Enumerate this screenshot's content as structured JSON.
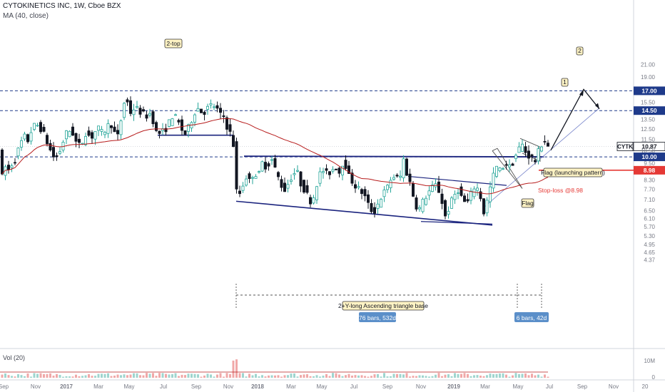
{
  "header": {
    "title": "CYTOKINETICS INC, 1W, Cboe BZX",
    "indicator": "MA (40, close)",
    "volume_label": "Vol (20)"
  },
  "chart_data": {
    "type": "candlestick",
    "symbol": "CYTK",
    "scale": "log",
    "ylim": [
      4.2,
      21.5
    ],
    "y_ticks": [
      "21.00",
      "19.00",
      "17.00",
      "15.50",
      "14.50",
      "13.50",
      "12.50",
      "11.50",
      "10.87",
      "10.50",
      "10.00",
      "9.50",
      "8.98",
      "8.30",
      "7.70",
      "7.10",
      "6.50",
      "6.10",
      "5.70",
      "5.30",
      "4.95",
      "4.65",
      "4.37"
    ],
    "x_tick_labels": [
      "Sep",
      "Nov",
      "2017",
      "Mar",
      "May",
      "Jul",
      "Sep",
      "Nov",
      "2018",
      "Mar",
      "May",
      "Jul",
      "Sep",
      "Nov",
      "2019",
      "Mar",
      "May",
      "Jul",
      "Sep",
      "Nov",
      "20"
    ],
    "volume_ticks": [
      "10M",
      "0"
    ],
    "price_levels": [
      {
        "label": "17.00",
        "value": 17.0,
        "color": "#1e3a8a"
      },
      {
        "label": "14.50",
        "value": 14.5,
        "color": "#1e3a8a"
      },
      {
        "label": "10.87",
        "value": 10.87,
        "color": "#131722"
      },
      {
        "label": "10.00",
        "value": 10.0,
        "color": "#1e3a8a"
      },
      {
        "label": "8.98",
        "value": 8.98,
        "color": "#e53935"
      }
    ],
    "last_price_tag": "CYTK",
    "annotations": {
      "two_top": "2-top",
      "flag_launch": "Flag (launching pattern)",
      "stop_loss": "Stop-loss @8.98",
      "flag": "Flag",
      "triangle_base": "2+Y-long Ascending triangle base",
      "bars_76": "76 bars, 532d",
      "bars_6": "6 bars, 42d",
      "target_1": "1",
      "target_2": "2"
    },
    "colors": {
      "up": "#26a69a",
      "down": "#131722",
      "ma": "#b71c1c",
      "blue_line": "#1a237e",
      "red_line": "#e53935",
      "bar_label_bg": "#5b8fc9",
      "annot_bg": "#fff3c4"
    }
  }
}
